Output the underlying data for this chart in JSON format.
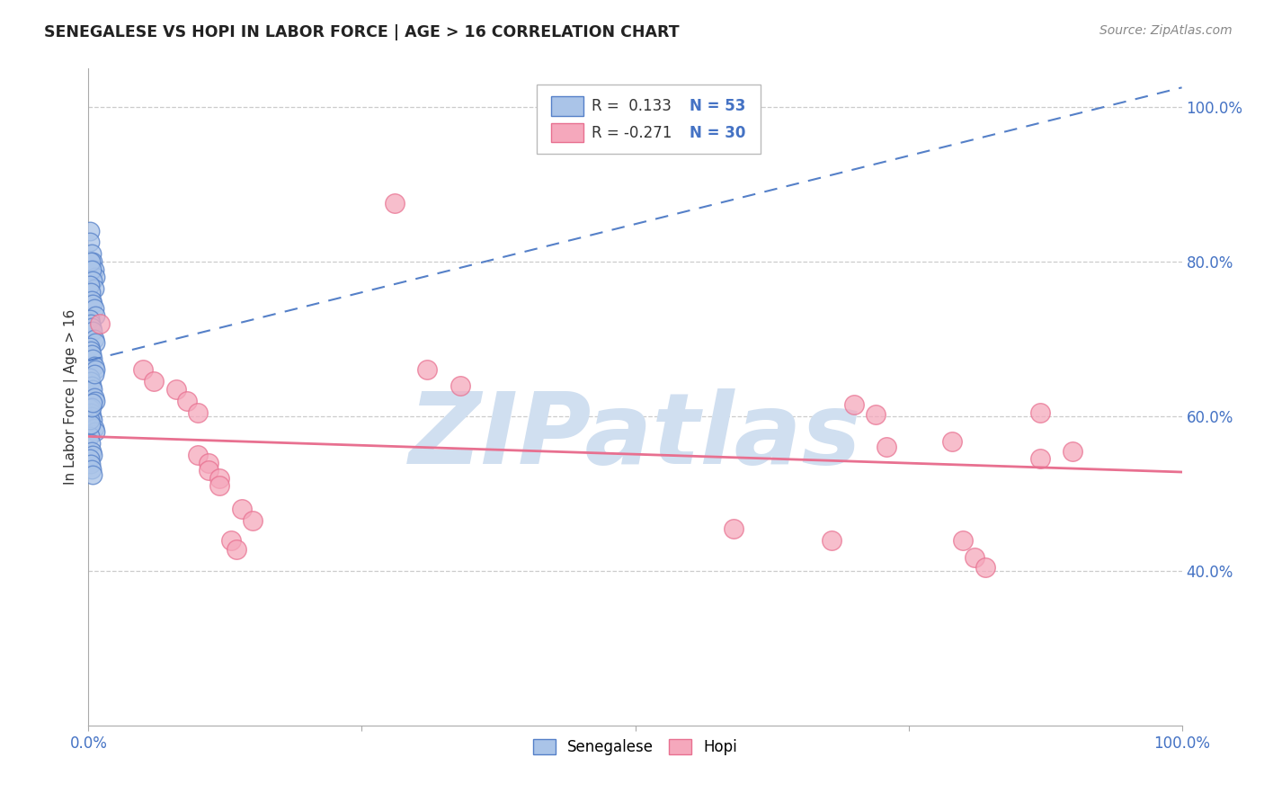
{
  "title": "SENEGALESE VS HOPI IN LABOR FORCE | AGE > 16 CORRELATION CHART",
  "source": "Source: ZipAtlas.com",
  "ylabel": "In Labor Force | Age > 16",
  "legend_blue_r": "R =  0.133",
  "legend_blue_n": "N = 53",
  "legend_pink_r": "R = -0.271",
  "legend_pink_n": "N = 30",
  "legend_bottom": [
    "Senegalese",
    "Hopi"
  ],
  "blue_color": "#aac4e8",
  "pink_color": "#f5a8bc",
  "blue_edge_color": "#5580c8",
  "pink_edge_color": "#e87090",
  "blue_line_color": "#5580c8",
  "pink_line_color": "#e87090",
  "blue_scatter": [
    [
      0.001,
      0.84
    ],
    [
      0.001,
      0.825
    ],
    [
      0.003,
      0.81
    ],
    [
      0.004,
      0.8
    ],
    [
      0.005,
      0.79
    ],
    [
      0.006,
      0.78
    ],
    [
      0.002,
      0.8
    ],
    [
      0.003,
      0.79
    ],
    [
      0.004,
      0.775
    ],
    [
      0.005,
      0.765
    ],
    [
      0.001,
      0.77
    ],
    [
      0.002,
      0.76
    ],
    [
      0.003,
      0.75
    ],
    [
      0.004,
      0.745
    ],
    [
      0.005,
      0.74
    ],
    [
      0.006,
      0.73
    ],
    [
      0.001,
      0.725
    ],
    [
      0.002,
      0.72
    ],
    [
      0.003,
      0.715
    ],
    [
      0.004,
      0.71
    ],
    [
      0.005,
      0.7
    ],
    [
      0.006,
      0.695
    ],
    [
      0.001,
      0.69
    ],
    [
      0.002,
      0.685
    ],
    [
      0.003,
      0.68
    ],
    [
      0.004,
      0.675
    ],
    [
      0.005,
      0.665
    ],
    [
      0.006,
      0.66
    ],
    [
      0.001,
      0.65
    ],
    [
      0.002,
      0.645
    ],
    [
      0.003,
      0.64
    ],
    [
      0.004,
      0.635
    ],
    [
      0.005,
      0.625
    ],
    [
      0.006,
      0.62
    ],
    [
      0.001,
      0.61
    ],
    [
      0.002,
      0.605
    ],
    [
      0.003,
      0.6
    ],
    [
      0.004,
      0.595
    ],
    [
      0.005,
      0.585
    ],
    [
      0.006,
      0.58
    ],
    [
      0.001,
      0.575
    ],
    [
      0.002,
      0.565
    ],
    [
      0.003,
      0.555
    ],
    [
      0.004,
      0.55
    ],
    [
      0.001,
      0.545
    ],
    [
      0.002,
      0.538
    ],
    [
      0.003,
      0.532
    ],
    [
      0.004,
      0.525
    ],
    [
      0.001,
      0.595
    ],
    [
      0.002,
      0.59
    ],
    [
      0.003,
      0.612
    ],
    [
      0.004,
      0.618
    ],
    [
      0.005,
      0.655
    ]
  ],
  "pink_scatter": [
    [
      0.01,
      0.72
    ],
    [
      0.05,
      0.66
    ],
    [
      0.06,
      0.645
    ],
    [
      0.08,
      0.635
    ],
    [
      0.09,
      0.62
    ],
    [
      0.1,
      0.605
    ],
    [
      0.1,
      0.55
    ],
    [
      0.11,
      0.54
    ],
    [
      0.11,
      0.53
    ],
    [
      0.12,
      0.52
    ],
    [
      0.12,
      0.51
    ],
    [
      0.13,
      0.44
    ],
    [
      0.135,
      0.428
    ],
    [
      0.14,
      0.48
    ],
    [
      0.15,
      0.465
    ],
    [
      0.28,
      0.875
    ],
    [
      0.31,
      0.66
    ],
    [
      0.34,
      0.64
    ],
    [
      0.59,
      0.455
    ],
    [
      0.68,
      0.44
    ],
    [
      0.7,
      0.615
    ],
    [
      0.72,
      0.602
    ],
    [
      0.73,
      0.56
    ],
    [
      0.79,
      0.567
    ],
    [
      0.8,
      0.44
    ],
    [
      0.81,
      0.418
    ],
    [
      0.82,
      0.405
    ],
    [
      0.87,
      0.545
    ],
    [
      0.87,
      0.605
    ],
    [
      0.9,
      0.555
    ]
  ],
  "xlim": [
    0.0,
    1.0
  ],
  "ylim": [
    0.2,
    1.05
  ],
  "yticks": [
    0.4,
    0.6,
    0.8,
    1.0
  ],
  "ytick_labels": [
    "40.0%",
    "60.0%",
    "80.0%",
    "100.0%"
  ],
  "xtick_labels_show": [
    "0.0%",
    "100.0%"
  ],
  "grid_color": "#cccccc",
  "background_color": "#ffffff",
  "watermark_text": "ZIPatlas",
  "watermark_color": "#d0dff0"
}
